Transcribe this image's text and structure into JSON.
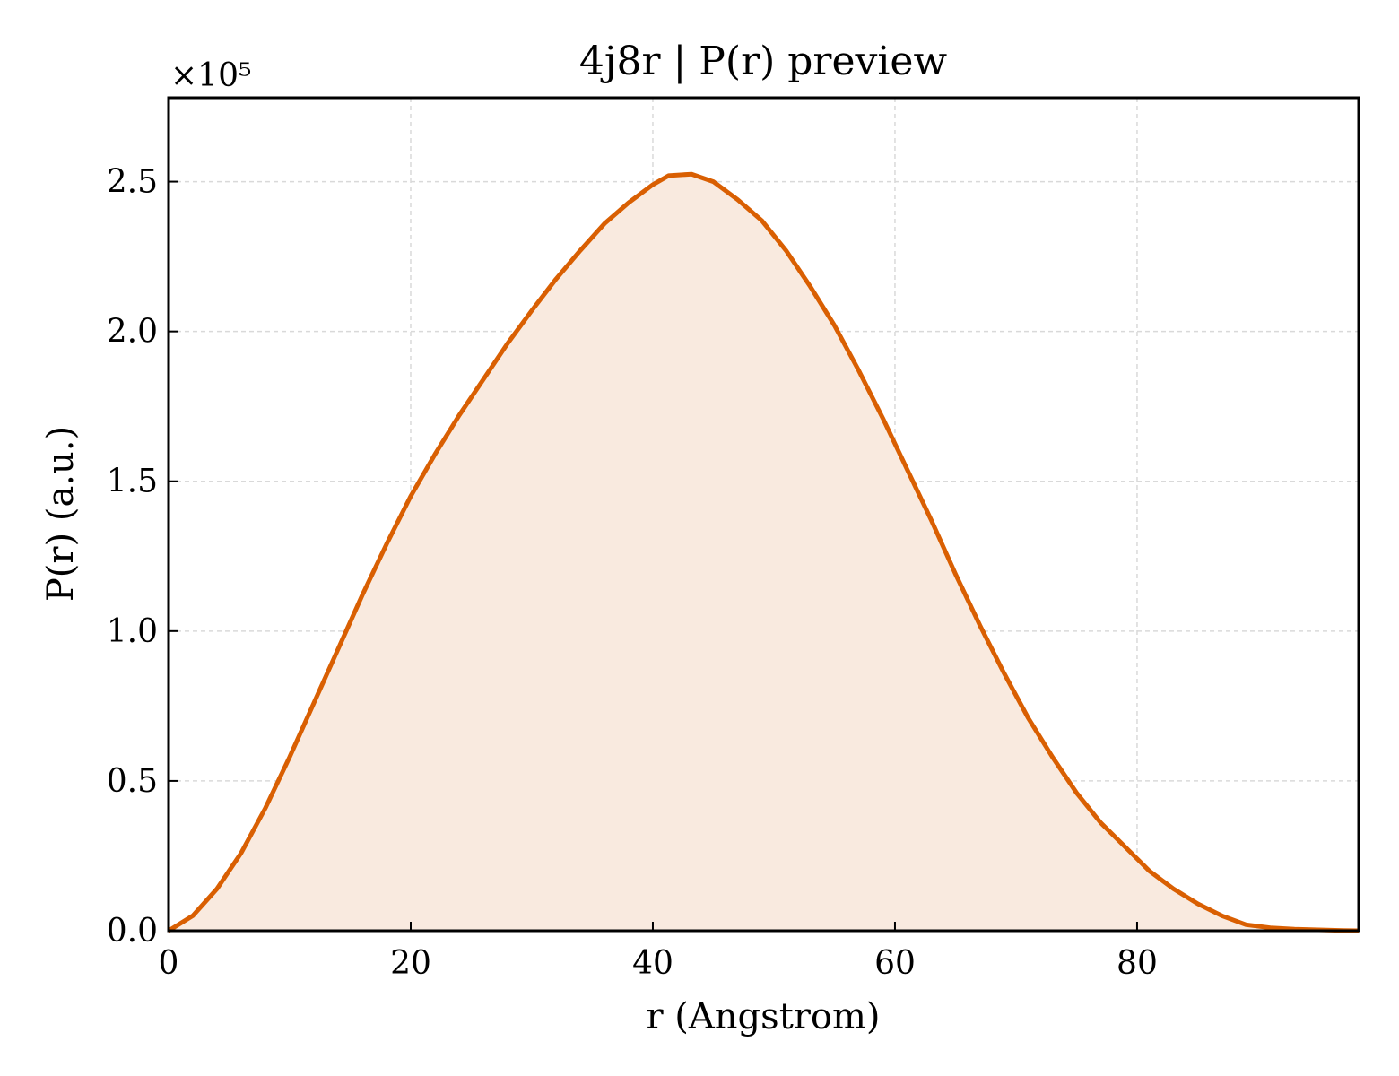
{
  "chart_data": {
    "type": "area",
    "title": "4j8r | P(r) preview",
    "xlabel": "r (Angstrom)",
    "ylabel": "P(r) (a.u.)",
    "y_scale_label": "×10⁵",
    "y_multiplier": 100000,
    "xlim": [
      0,
      98.3
    ],
    "ylim": [
      0,
      2.78
    ],
    "xticks": [
      0,
      20,
      40,
      60,
      80
    ],
    "xtick_labels": [
      "0",
      "20",
      "40",
      "60",
      "80"
    ],
    "yticks": [
      0.0,
      0.5,
      1.0,
      1.5,
      2.0,
      2.5
    ],
    "ytick_labels": [
      "0.0",
      "0.5",
      "1.0",
      "1.5",
      "2.0",
      "2.5"
    ],
    "grid": true,
    "colors": {
      "line": "#d95f02",
      "fill": "#f9eadf",
      "grid": "#d9d9d9"
    },
    "series": [
      {
        "x": [
          0,
          2,
          4,
          6,
          8,
          10,
          12,
          14,
          16,
          18,
          20,
          22,
          24,
          26,
          28,
          30,
          32,
          34,
          36,
          38,
          40,
          41.3,
          43.2,
          45,
          47,
          49,
          51,
          53,
          55,
          57,
          59,
          61,
          63,
          65,
          67,
          69,
          71,
          73,
          75,
          77,
          79,
          81,
          83,
          85,
          87,
          89,
          91,
          93,
          95,
          97,
          98.3
        ],
        "y": [
          0.0,
          0.05,
          0.14,
          0.26,
          0.41,
          0.58,
          0.76,
          0.94,
          1.12,
          1.29,
          1.45,
          1.59,
          1.72,
          1.84,
          1.96,
          2.07,
          2.175,
          2.27,
          2.36,
          2.43,
          2.49,
          2.52,
          2.525,
          2.5,
          2.44,
          2.37,
          2.27,
          2.15,
          2.02,
          1.87,
          1.71,
          1.54,
          1.37,
          1.19,
          1.02,
          0.86,
          0.71,
          0.58,
          0.46,
          0.36,
          0.28,
          0.2,
          0.14,
          0.09,
          0.05,
          0.02,
          0.01,
          0.005,
          0.003,
          0.001,
          0.0
        ]
      }
    ]
  }
}
